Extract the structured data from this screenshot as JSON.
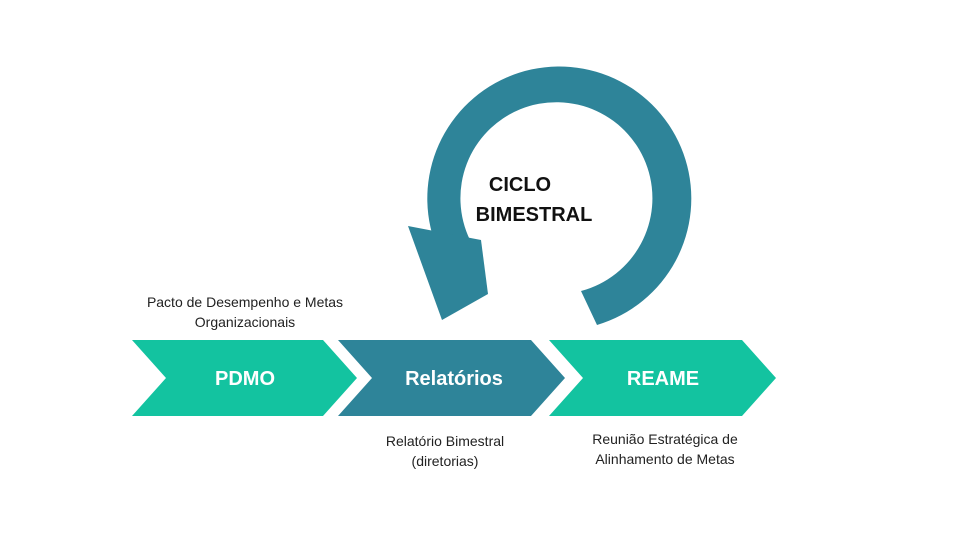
{
  "colors": {
    "chevron_green": "#13c3a0",
    "chevron_teal": "#2e8499",
    "cycle_arrow": "#2e8499",
    "label_text": "#ffffff",
    "caption_text": "#222222"
  },
  "cycle": {
    "line1": "CICLO",
    "line2": "BIMESTRAL"
  },
  "steps": [
    {
      "label": "PDMO",
      "caption": "Pacto de Desempenho e Metas\nOrganizacionais"
    },
    {
      "label": "Relatórios",
      "caption": "Relatório Bimestral\n(diretorias)"
    },
    {
      "label": "REAME",
      "caption": "Reunião Estratégica de\nAlinhamento de Metas"
    }
  ]
}
